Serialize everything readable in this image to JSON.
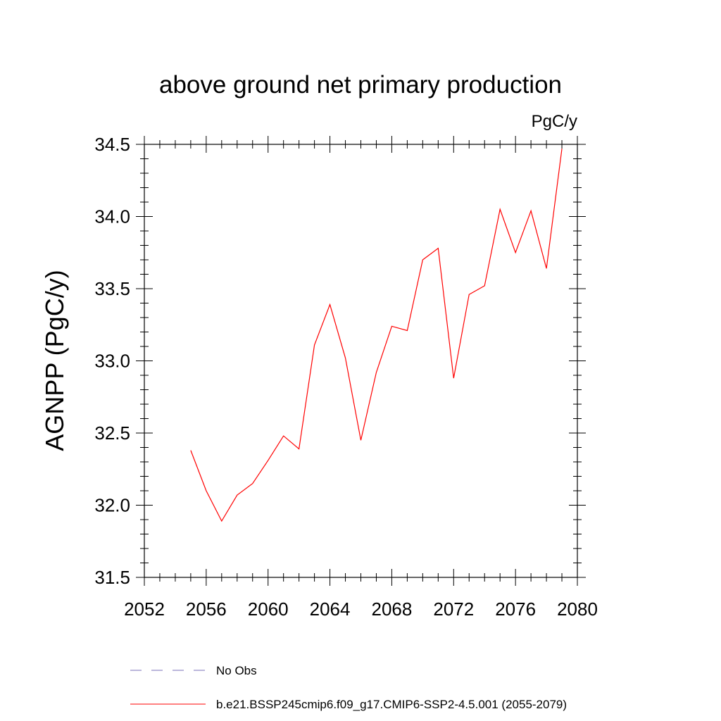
{
  "chart_data": {
    "type": "line",
    "title": "above ground net primary production",
    "units_label": "PgC/y",
    "ylabel": "AGNPP  (PgC/y)",
    "xlabel": "",
    "xlim": [
      2052,
      2080
    ],
    "ylim": [
      31.5,
      34.5
    ],
    "x_ticks": [
      "2052",
      "2056",
      "2060",
      "2064",
      "2068",
      "2072",
      "2076",
      "2080"
    ],
    "y_ticks": [
      "31.5",
      "32.0",
      "32.5",
      "33.0",
      "33.5",
      "34.0",
      "34.5"
    ],
    "grid": false,
    "legend_position": "bottom",
    "series": [
      {
        "name": "b.e21.BSSP245cmip6.f09_g17.CMIP6-SSP2-4.5.001 (2055-2079)",
        "color": "#ff0000",
        "style": "solid",
        "x": [
          2055,
          2056,
          2057,
          2058,
          2059,
          2060,
          2061,
          2062,
          2063,
          2064,
          2065,
          2066,
          2067,
          2068,
          2069,
          2070,
          2071,
          2072,
          2073,
          2074,
          2075,
          2076,
          2077,
          2078,
          2079
        ],
        "y": [
          32.38,
          32.1,
          31.89,
          32.07,
          32.15,
          32.31,
          32.48,
          32.39,
          33.11,
          33.39,
          33.02,
          32.45,
          32.92,
          33.24,
          33.21,
          33.7,
          33.78,
          32.88,
          33.46,
          33.52,
          34.05,
          33.75,
          34.04,
          33.64,
          34.47
        ]
      }
    ],
    "legend": [
      {
        "label": "No Obs",
        "color": "#7a6fb8",
        "style": "dashed"
      },
      {
        "label": "b.e21.BSSP245cmip6.f09_g17.CMIP6-SSP2-4.5.001 (2055-2079)",
        "color": "#ff0000",
        "style": "solid"
      }
    ]
  }
}
